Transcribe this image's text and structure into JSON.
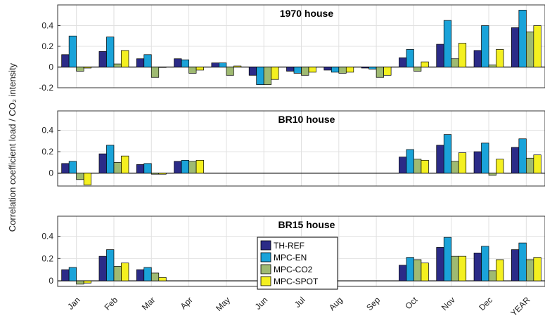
{
  "chart_data": [
    {
      "type": "bar",
      "title": "1970 house",
      "categories": [
        "Jan",
        "Feb",
        "Mar",
        "Apr",
        "May",
        "Jun",
        "Jul",
        "Aug",
        "Sep",
        "Oct",
        "Nov",
        "Dec",
        "YEAR"
      ],
      "ylim": [
        -0.2,
        0.6
      ],
      "yticks": [
        "0.4",
        "0.2",
        "0",
        "-0.2"
      ],
      "grid": true,
      "series": [
        {
          "name": "TH-REF",
          "values": [
            0.12,
            0.15,
            0.08,
            0.08,
            0.04,
            -0.08,
            -0.04,
            -0.03,
            -0.01,
            0.09,
            0.22,
            0.16,
            0.38
          ]
        },
        {
          "name": "MPC-EN",
          "values": [
            0.3,
            0.29,
            0.12,
            0.07,
            0.04,
            -0.17,
            -0.06,
            -0.05,
            -0.02,
            0.17,
            0.45,
            0.4,
            0.55
          ]
        },
        {
          "name": "MPC-CO2",
          "values": [
            -0.04,
            0.03,
            -0.1,
            -0.06,
            -0.08,
            -0.17,
            -0.08,
            -0.06,
            -0.1,
            -0.04,
            0.08,
            0.02,
            0.34
          ]
        },
        {
          "name": "MPC-SPOT",
          "values": [
            -0.01,
            0.16,
            0.0,
            -0.03,
            0.01,
            -0.12,
            -0.05,
            -0.05,
            -0.08,
            0.05,
            0.23,
            0.17,
            0.4
          ]
        }
      ]
    },
    {
      "type": "bar",
      "title": "BR10 house",
      "categories": [
        "Jan",
        "Feb",
        "Mar",
        "Apr",
        "May",
        "Jun",
        "Jul",
        "Aug",
        "Sep",
        "Oct",
        "Nov",
        "Dec",
        "YEAR"
      ],
      "ylim": [
        -0.12,
        0.58
      ],
      "yticks": [
        "0.4",
        "0.2",
        "0"
      ],
      "grid": true,
      "series": [
        {
          "name": "TH-REF",
          "values": [
            0.09,
            0.18,
            0.08,
            0.11,
            null,
            null,
            null,
            null,
            null,
            0.15,
            0.26,
            0.2,
            0.24
          ]
        },
        {
          "name": "MPC-EN",
          "values": [
            0.11,
            0.26,
            0.09,
            0.12,
            null,
            null,
            null,
            null,
            null,
            0.22,
            0.36,
            0.28,
            0.32
          ]
        },
        {
          "name": "MPC-CO2",
          "values": [
            -0.06,
            0.1,
            -0.01,
            0.11,
            null,
            null,
            null,
            null,
            null,
            0.13,
            0.11,
            -0.02,
            0.14
          ]
        },
        {
          "name": "MPC-SPOT",
          "values": [
            -0.11,
            0.16,
            -0.01,
            0.12,
            null,
            null,
            null,
            null,
            null,
            0.12,
            0.19,
            0.13,
            0.17
          ]
        }
      ]
    },
    {
      "type": "bar",
      "title": "BR15 house",
      "categories": [
        "Jan",
        "Feb",
        "Mar",
        "Apr",
        "May",
        "Jun",
        "Jul",
        "Aug",
        "Sep",
        "Oct",
        "Nov",
        "Dec",
        "YEAR"
      ],
      "ylim": [
        -0.05,
        0.58
      ],
      "yticks": [
        "0.4",
        "0.2",
        "0"
      ],
      "grid": true,
      "series": [
        {
          "name": "TH-REF",
          "values": [
            0.1,
            0.22,
            0.1,
            null,
            null,
            null,
            null,
            null,
            null,
            0.14,
            0.3,
            0.25,
            0.28
          ]
        },
        {
          "name": "MPC-EN",
          "values": [
            0.12,
            0.28,
            0.12,
            null,
            null,
            null,
            null,
            null,
            null,
            0.21,
            0.39,
            0.31,
            0.34
          ]
        },
        {
          "name": "MPC-CO2",
          "values": [
            -0.03,
            0.13,
            0.07,
            null,
            null,
            null,
            null,
            null,
            null,
            0.19,
            0.22,
            0.09,
            0.19
          ]
        },
        {
          "name": "MPC-SPOT",
          "values": [
            -0.02,
            0.16,
            0.03,
            null,
            null,
            null,
            null,
            null,
            null,
            0.16,
            0.22,
            0.19,
            0.21
          ]
        }
      ]
    }
  ],
  "ylabel": "Correlation coefficient load / CO₂ intensity",
  "legend": {
    "placement": "inside bottom panel, center",
    "items": [
      "TH-REF",
      "MPC-EN",
      "MPC-CO2",
      "MPC-SPOT"
    ]
  },
  "colors": {
    "TH-REF": "#2b2b87",
    "MPC-EN": "#1aa3d9",
    "MPC-CO2": "#9fba72",
    "MPC-SPOT": "#f4f020",
    "grid": "#e0e0e0",
    "axis": "#333333"
  }
}
